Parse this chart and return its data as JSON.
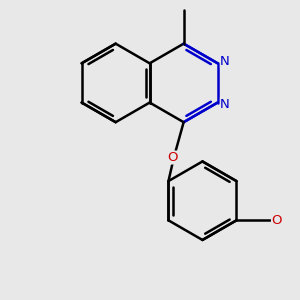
{
  "background_color": "#e8e8e8",
  "bond_color": "#000000",
  "N_color": "#0000cc",
  "O_color": "#cc0000",
  "line_width": 1.8,
  "dbo": 0.05,
  "figsize": [
    3.0,
    3.0
  ],
  "dpi": 100,
  "xlim": [
    -1.6,
    1.6
  ],
  "ylim": [
    -2.1,
    1.5
  ]
}
